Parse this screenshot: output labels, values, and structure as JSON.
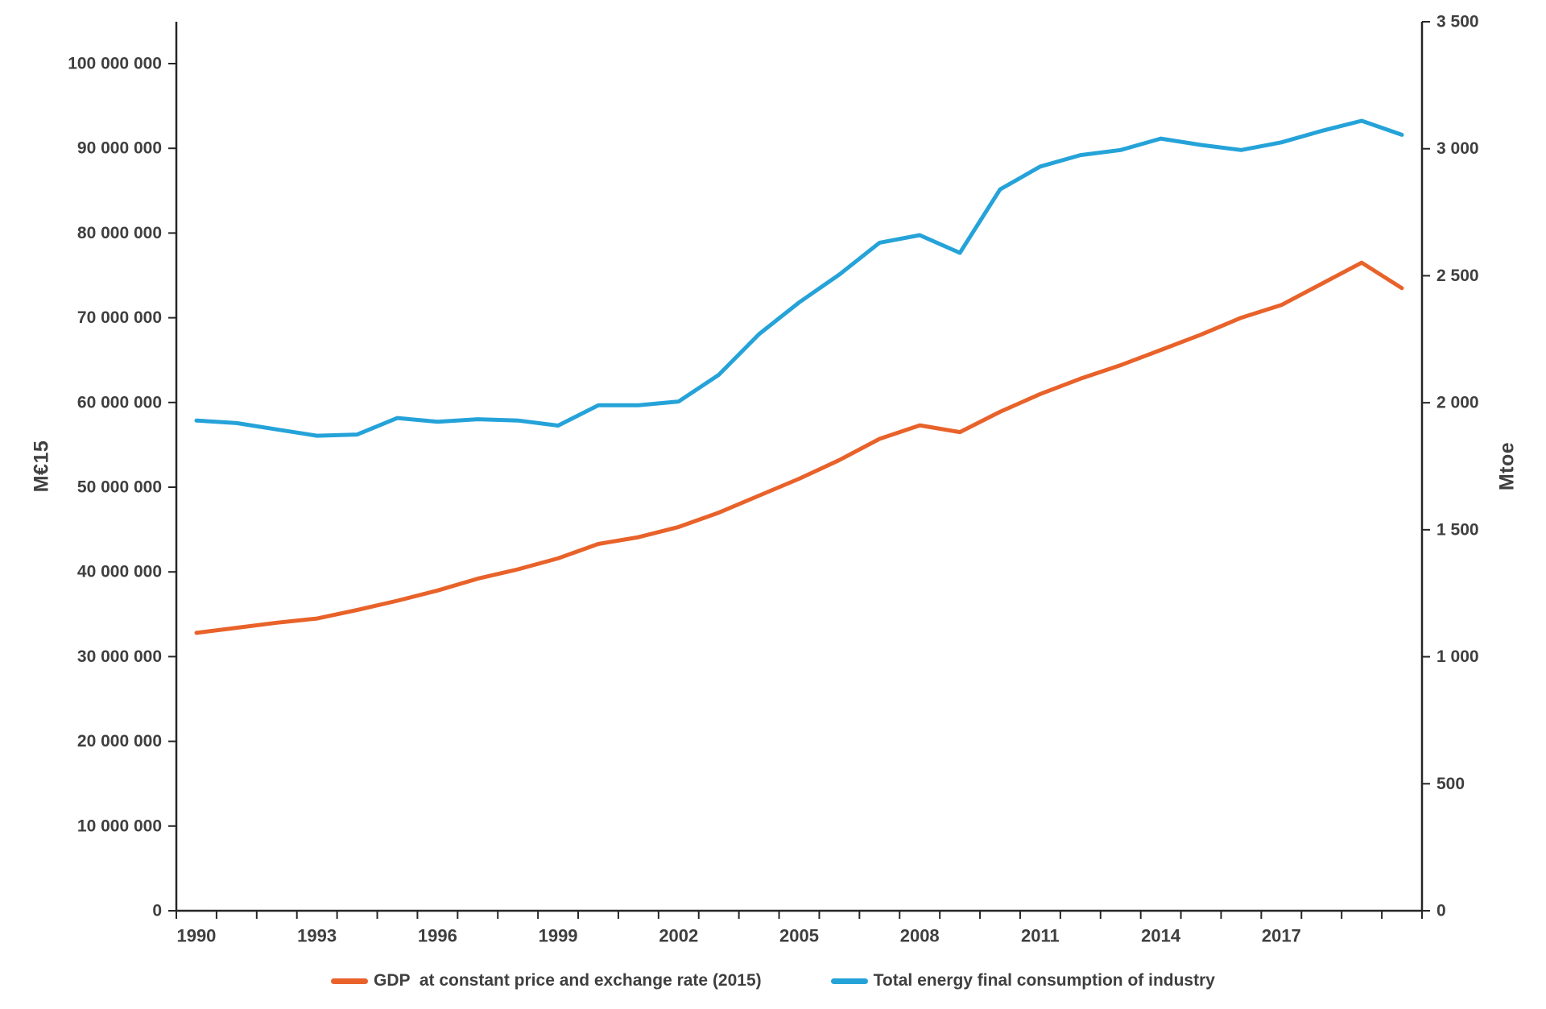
{
  "chart_data": {
    "type": "line",
    "title": "",
    "x": [
      1990,
      1991,
      1992,
      1993,
      1994,
      1995,
      1996,
      1997,
      1998,
      1999,
      2000,
      2001,
      2002,
      2003,
      2004,
      2005,
      2006,
      2007,
      2008,
      2009,
      2010,
      2011,
      2012,
      2013,
      2014,
      2015,
      2016,
      2017,
      2018,
      2019,
      2020
    ],
    "x_tick_labels": [
      "1990",
      "1993",
      "1996",
      "1999",
      "2002",
      "2005",
      "2008",
      "2011",
      "2014",
      "2017"
    ],
    "series": [
      {
        "name": "GDP  at constant price and exchange rate (2015)",
        "axis": "left",
        "color": "#E8622A",
        "values": [
          32800000,
          33400000,
          34000000,
          34500000,
          35500000,
          36600000,
          37800000,
          39200000,
          40300000,
          41600000,
          43300000,
          44100000,
          45300000,
          47000000,
          49000000,
          51000000,
          53200000,
          55700000,
          57300000,
          56500000,
          58900000,
          61000000,
          62800000,
          64400000,
          66200000,
          68000000,
          70000000,
          71500000,
          74000000,
          76500000,
          73500000
        ]
      },
      {
        "name": "Total energy final consumption of industry",
        "axis": "right",
        "color": "#25A3D9",
        "values": [
          1930,
          1920,
          1895,
          1870,
          1875,
          1940,
          1925,
          1935,
          1930,
          1910,
          1990,
          1990,
          2005,
          2110,
          2270,
          2395,
          2505,
          2630,
          2660,
          2590,
          2840,
          2930,
          2975,
          2995,
          3040,
          3015,
          2995,
          3025,
          3070,
          3110,
          3055
        ]
      }
    ],
    "left_axis": {
      "title": "M€15",
      "min": 0,
      "max": 100000000,
      "step": 10000000
    },
    "right_axis": {
      "title": "Mtoe",
      "min": 0,
      "max": 3500,
      "step": 500
    },
    "legend_position": "bottom",
    "grid": false,
    "text_color": "#3f3f3f",
    "axis_line_color": "#262626"
  }
}
